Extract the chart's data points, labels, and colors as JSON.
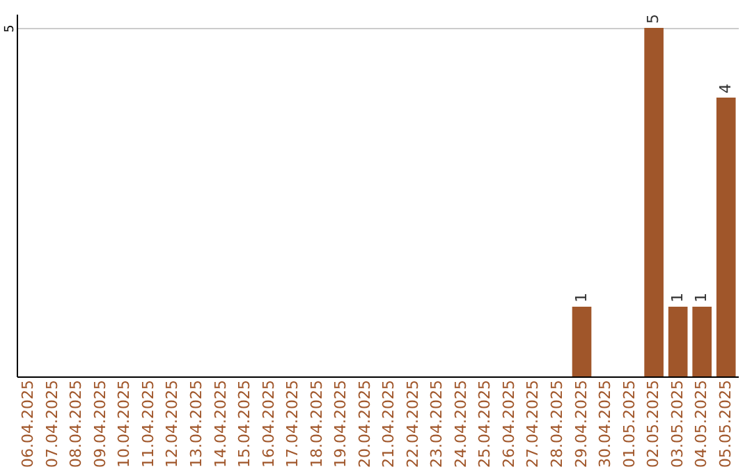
{
  "chart_data": {
    "type": "bar",
    "categories": [
      "06.04.2025",
      "07.04.2025",
      "08.04.2025",
      "09.04.2025",
      "10.04.2025",
      "11.04.2025",
      "12.04.2025",
      "13.04.2025",
      "14.04.2025",
      "15.04.2025",
      "16.04.2025",
      "17.04.2025",
      "18.04.2025",
      "19.04.2025",
      "20.04.2025",
      "21.04.2025",
      "22.04.2025",
      "23.04.2025",
      "24.04.2025",
      "25.04.2025",
      "26.04.2025",
      "27.04.2025",
      "28.04.2025",
      "29.04.2025",
      "30.04.2025",
      "01.05.2025",
      "02.05.2025",
      "03.05.2025",
      "04.05.2025",
      "05.05.2025"
    ],
    "values": [
      null,
      null,
      null,
      null,
      null,
      null,
      null,
      null,
      null,
      null,
      null,
      null,
      null,
      null,
      null,
      null,
      null,
      null,
      null,
      null,
      null,
      null,
      null,
      1,
      null,
      null,
      5,
      1,
      1,
      4
    ],
    "color": "#a0562a",
    "ylim": [
      0,
      5.2
    ],
    "yticks": [
      5
    ],
    "grid": "y",
    "data_labels": true
  }
}
